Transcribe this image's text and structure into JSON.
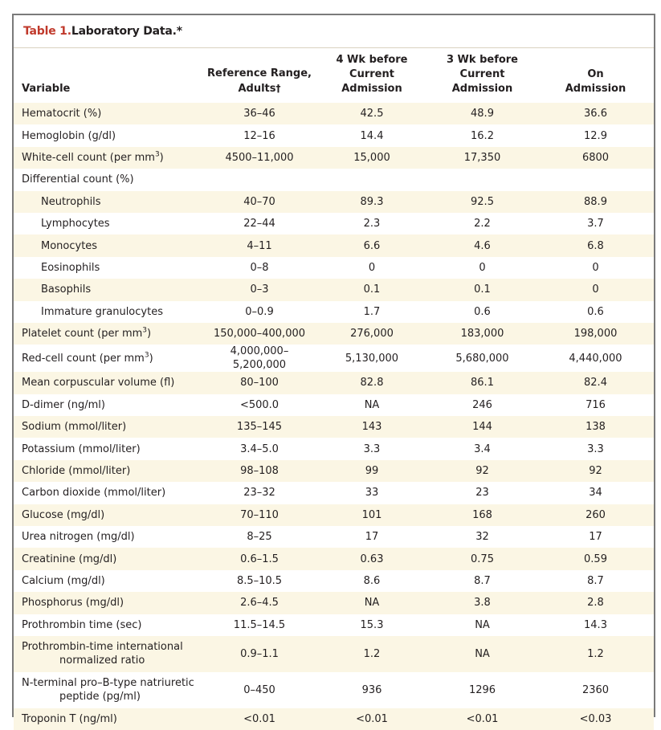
{
  "title": {
    "number": "Table 1.",
    "text": " Laboratory Data.*"
  },
  "headers": {
    "variable": "Variable",
    "ref_line1": "Reference Range,",
    "ref_line2": "Adults",
    "ref_dagger": "†",
    "wk4_line1": "4 Wk before",
    "wk4_line2": "Current Admission",
    "wk3_line1": "3 Wk before",
    "wk3_line2": "Current Admission",
    "adm_line1": "On",
    "adm_line2": "Admission"
  },
  "rows": [
    {
      "label": "Hematocrit (%)",
      "ref": "36–46",
      "wk4": "42.5",
      "wk3": "48.9",
      "adm": "36.6"
    },
    {
      "label": "Hemoglobin (g/dl)",
      "ref": "12–16",
      "wk4": "14.4",
      "wk3": "16.2",
      "adm": "12.9"
    },
    {
      "label": "White-cell count (per mm",
      "sup": "3",
      "label_end": ")",
      "ref": "4500–11,000",
      "wk4": "15,000",
      "wk3": "17,350",
      "adm": "6800"
    },
    {
      "label": "Differential count (%)",
      "ref": "",
      "wk4": "",
      "wk3": "",
      "adm": ""
    },
    {
      "label": "Neutrophils",
      "ref": "40–70",
      "wk4": "89.3",
      "wk3": "92.5",
      "adm": "88.9"
    },
    {
      "label": "Lymphocytes",
      "ref": "22–44",
      "wk4": "2.3",
      "wk3": "2.2",
      "adm": "3.7"
    },
    {
      "label": "Monocytes",
      "ref": "4–11",
      "wk4": "6.6",
      "wk3": "4.6",
      "adm": "6.8"
    },
    {
      "label": "Eosinophils",
      "ref": "0–8",
      "wk4": "0",
      "wk3": "0",
      "adm": "0"
    },
    {
      "label": "Basophils",
      "ref": "0–3",
      "wk4": "0.1",
      "wk3": "0.1",
      "adm": "0"
    },
    {
      "label": "Immature granulocytes",
      "ref": "0–0.9",
      "wk4": "1.7",
      "wk3": "0.6",
      "adm": "0.6"
    },
    {
      "label": "Platelet count (per mm",
      "sup": "3",
      "label_end": ")",
      "ref": "150,000–400,000",
      "wk4": "276,000",
      "wk3": "183,000",
      "adm": "198,000"
    },
    {
      "label": "Red-cell count (per mm",
      "sup": "3",
      "label_end": ")",
      "ref": "4,000,000–5,200,000",
      "wk4": "5,130,000",
      "wk3": "5,680,000",
      "adm": "4,440,000"
    },
    {
      "label": "Mean corpuscular volume (fl)",
      "ref": "80–100",
      "wk4": "82.8",
      "wk3": "86.1",
      "adm": "82.4"
    },
    {
      "label": "D-dimer (ng/ml)",
      "ref": "<500.0",
      "wk4": "NA",
      "wk3": "246",
      "adm": "716"
    },
    {
      "label": "Sodium (mmol/liter)",
      "ref": "135–145",
      "wk4": "143",
      "wk3": "144",
      "adm": "138"
    },
    {
      "label": "Potassium (mmol/liter)",
      "ref": "3.4–5.0",
      "wk4": "3.3",
      "wk3": "3.4",
      "adm": "3.3"
    },
    {
      "label": "Chloride (mmol/liter)",
      "ref": "98–108",
      "wk4": "99",
      "wk3": "92",
      "adm": "92"
    },
    {
      "label": "Carbon dioxide (mmol/liter)",
      "ref": "23–32",
      "wk4": "33",
      "wk3": "23",
      "adm": "34"
    },
    {
      "label": "Glucose (mg/dl)",
      "ref": "70–110",
      "wk4": "101",
      "wk3": "168",
      "adm": "260"
    },
    {
      "label": "Urea nitrogen (mg/dl)",
      "ref": "8–25",
      "wk4": "17",
      "wk3": "32",
      "adm": "17"
    },
    {
      "label": "Creatinine (mg/dl)",
      "ref": "0.6–1.5",
      "wk4": "0.63",
      "wk3": "0.75",
      "adm": "0.59"
    },
    {
      "label": "Calcium (mg/dl)",
      "ref": "8.5–10.5",
      "wk4": "8.6",
      "wk3": "8.7",
      "adm": "8.7"
    },
    {
      "label": "Phosphorus (mg/dl)",
      "ref": "2.6–4.5",
      "wk4": "NA",
      "wk3": "3.8",
      "adm": "2.8"
    },
    {
      "label": "Prothrombin time (sec)",
      "ref": "11.5–14.5",
      "wk4": "15.3",
      "wk3": "NA",
      "adm": "14.3"
    },
    {
      "label": "Prothrombin-time international",
      "label_line2": "normalized ratio",
      "ref": "0.9–1.1",
      "wk4": "1.2",
      "wk3": "NA",
      "adm": "1.2"
    },
    {
      "label": "N-terminal pro–B-type natriuretic",
      "label_line2": "peptide (pg/ml)",
      "ref": "0–450",
      "wk4": "936",
      "wk3": "1296",
      "adm": "2360"
    },
    {
      "label": "Troponin T (ng/ml)",
      "ref": "<0.01",
      "wk4": "<0.01",
      "wk3": "<0.01",
      "adm": "<0.03"
    }
  ],
  "colors": {
    "title_accent": "#c0392b",
    "row_shade": "#fbf6e4",
    "border": "#7a7a7a"
  }
}
